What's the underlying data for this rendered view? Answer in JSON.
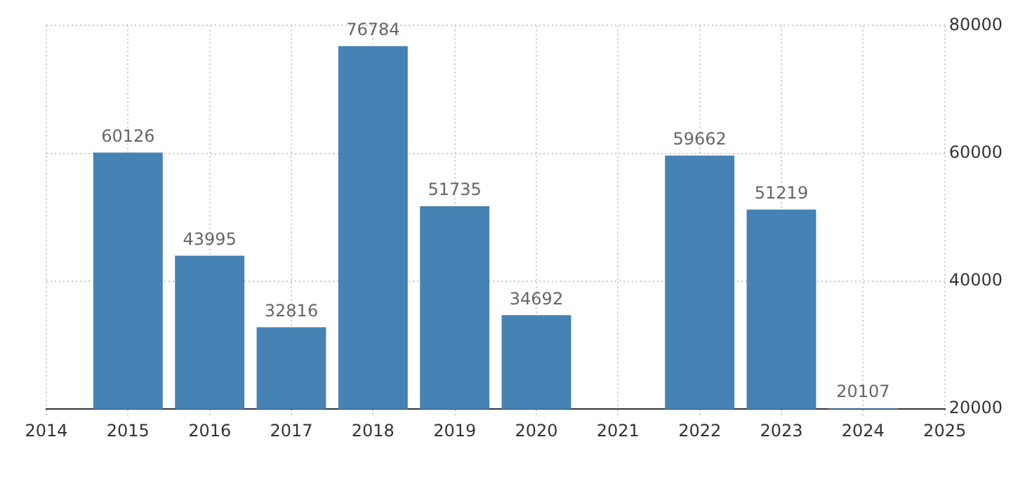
{
  "chart_data": {
    "type": "bar",
    "x": [
      2015,
      2016,
      2017,
      2018,
      2019,
      2020,
      2021,
      2022,
      2023,
      2024
    ],
    "values": [
      60126,
      43995,
      32816,
      76784,
      51735,
      34692,
      null,
      59662,
      51219,
      20107
    ],
    "color": "#4682b4",
    "xlim": [
      2014,
      2025
    ],
    "xticks": [
      2014,
      2015,
      2016,
      2017,
      2018,
      2019,
      2020,
      2021,
      2022,
      2023,
      2024,
      2025
    ],
    "ylim": [
      20000,
      80000
    ],
    "yticks": [
      20000,
      40000,
      60000,
      80000
    ],
    "grid": true,
    "data_labels": true,
    "legend": false
  }
}
